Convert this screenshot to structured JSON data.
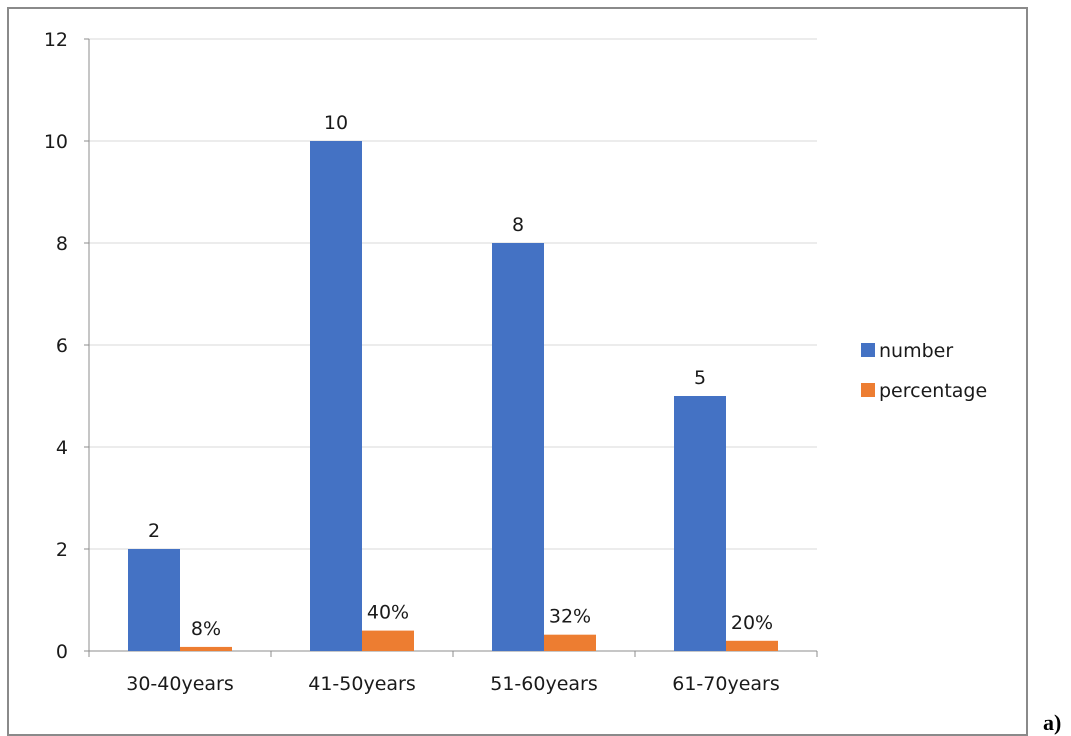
{
  "panel_label": "a)",
  "chart_data": {
    "type": "bar",
    "categories": [
      "30-40years",
      "41-50years",
      "51-60years",
      "61-70years"
    ],
    "series": [
      {
        "name": "number",
        "values": [
          2,
          10,
          8,
          5
        ],
        "labels": [
          "2",
          "10",
          "8",
          "5"
        ],
        "color": "#4472C4"
      },
      {
        "name": "percentage",
        "values": [
          0.08,
          0.4,
          0.32,
          0.2
        ],
        "labels": [
          "8%",
          "40%",
          "32%",
          "20%"
        ],
        "color": "#ED7D31"
      }
    ],
    "ylim": [
      0,
      12
    ],
    "yticks": [
      0,
      2,
      4,
      6,
      8,
      10,
      12
    ],
    "grid": true,
    "legend_position": "right"
  }
}
